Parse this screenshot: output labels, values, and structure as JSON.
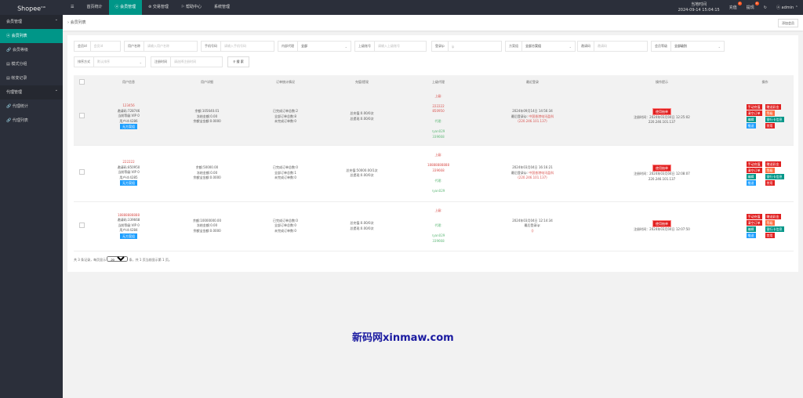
{
  "app": {
    "logo": "Shopee",
    "logo_sup": "V16"
  },
  "topnav": [
    {
      "label": "☰"
    },
    {
      "label": "首页统计"
    },
    {
      "label": "会员管理"
    },
    {
      "label": "交易管理"
    },
    {
      "label": "帮助中心"
    },
    {
      "label": "系统管理"
    }
  ],
  "topright": {
    "time_label": "当地时间",
    "time": "2024-09-14 15:04:15",
    "recharge": "充值",
    "recharge_badge": "1",
    "withdraw": "提现",
    "withdraw_badge": "0",
    "user": "admin"
  },
  "sidebar": [
    {
      "label": "会员管理",
      "group": true
    },
    {
      "label": "会员列表",
      "active": true
    },
    {
      "label": "会员等级"
    },
    {
      "label": "模式分组"
    },
    {
      "label": "帐变记录"
    },
    {
      "label": "代理管理",
      "group": true
    },
    {
      "label": "代理统计"
    },
    {
      "label": "代理列表"
    }
  ],
  "breadcrumb": "会员列表",
  "add_button": "添加会员",
  "filters": {
    "uid": {
      "label": "会员id",
      "placeholder": "会员id"
    },
    "username": {
      "label": "用户名称",
      "placeholder": "请输入用户名称"
    },
    "phone": {
      "label": "手机号码",
      "placeholder": "请输入手机号码"
    },
    "inner_agent": {
      "label": "内部代理",
      "value": "全部"
    },
    "parent": {
      "label": "上级账号",
      "placeholder": "请输入上级账号"
    },
    "ip": {
      "label": "登录ip",
      "placeholder": "ip"
    },
    "scheme": {
      "label": "方案组",
      "value": "全部方案组"
    },
    "invite": {
      "label": "邀请码",
      "placeholder": "邀请码"
    },
    "level": {
      "label": "会员等级",
      "value": "全部级别"
    },
    "sort": {
      "label": "排序方式",
      "value": "默认排序"
    },
    "regtime": {
      "label": "注册时间",
      "placeholder": "请选择注册时间"
    },
    "search": "搜 索"
  },
  "table": {
    "headers": [
      "",
      "用户信息",
      "用户详细",
      "订单统计情况",
      "充值/提现",
      "上级代理",
      "最近登录",
      "操作提示",
      "操作"
    ],
    "rows": [
      {
        "name": "123456",
        "invite": "邀请码:728746",
        "level": "当前等级:VIP 0",
        "uid": "用户id:4286",
        "tag": "无方案组",
        "balance": "余额:105640.01",
        "frozen": "冻结金额:0.00",
        "yeb": "余额宝金额:0.0000",
        "done": "已完成订单总数:2",
        "all": "全部订单总数:8",
        "undone": "未完成订单数:0",
        "recharge": "总充值:0.00/0次",
        "withdraw": "总提现:0.00/0次",
        "up_label": "上级:",
        "up1": "222222",
        "up2": "850950",
        "agent_label": "代理:",
        "agent1": "ryan029",
        "agent2": "339668",
        "login_time": "2024年09月14日 14:56:34",
        "login_ip_label": "最后登录ip:",
        "login_loc": "中国香港电讯盈科",
        "login_ip": "(220.246.101.137)",
        "status": "使用抽单",
        "reg": "注册时间：2024年03月04日 12:25:02",
        "reg_ip": "220.246.101.137"
      },
      {
        "name": "222222",
        "invite": "邀请码:850950",
        "level": "当前等级:VIP 0",
        "uid": "用户id:4285",
        "tag": "无方案组",
        "balance": "余额:50000.00",
        "frozen": "冻结金额:0.00",
        "yeb": "余额宝金额:0.0000",
        "done": "已完成订单总数:0",
        "all": "全部订单总数:1",
        "undone": "未完成订单数:0",
        "recharge": "总充值:50000.00/1次",
        "withdraw": "总提现:0.00/0次",
        "up_label": "上级:",
        "up1": "18888888888",
        "up2": "339668",
        "agent_label": "代理:",
        "agent1": "ryan029",
        "agent2": "",
        "login_time": "2024年03月04日 16:16:21",
        "login_ip_label": "最后登录ip:",
        "login_loc": "中国香港电讯盈科",
        "login_ip": "(220.246.101.137)",
        "status": "使用抽单",
        "reg": "注册时间：2024年03月04日 12:08:07",
        "reg_ip": "220.246.101.137"
      },
      {
        "name": "18888888888",
        "invite": "邀请码:339668",
        "level": "当前等级:VIP 0",
        "uid": "用户id:4284",
        "tag": "无方案组",
        "balance": "余额:10000000.00",
        "frozen": "冻结金额:0.00",
        "yeb": "余额宝金额:0.0000",
        "done": "已完成订单总数:0",
        "all": "全部订单总数:0",
        "undone": "未完成订单数:0",
        "recharge": "总充值:0.00/0次",
        "withdraw": "总提现:0.00/0次",
        "up_label": "上级:",
        "up1": "",
        "up2": "",
        "agent_label": "代理:",
        "agent1": "ryan029",
        "agent2": "339668",
        "login_time": "2024年03月04日 12:14:34",
        "login_ip_label": "最后登录ip:",
        "login_loc": "",
        "login_ip": "()",
        "status": "使用抽单",
        "reg": "注册时间：2024年03月04日 12:07:50",
        "reg_ip": ""
      }
    ],
    "actions": [
      {
        "label": "手动充值",
        "color": "#e02020"
      },
      {
        "label": "赠送彩金",
        "color": "#e02020"
      },
      {
        "label": "清空订单",
        "color": "#e02020"
      },
      {
        "label": "等级",
        "color": "#ff7043"
      },
      {
        "label": "编辑",
        "color": "#009688"
      },
      {
        "label": "银行卡信息",
        "color": "#009688"
      },
      {
        "label": "推送",
        "color": "#1e9fff"
      },
      {
        "label": "禁用",
        "color": "#e02020"
      }
    ]
  },
  "pagination": {
    "prefix": "共 3 条记录，每页显示",
    "per_page": "20",
    "suffix": "条，共 1 页当前显示第 1 页。"
  },
  "watermark": "新码网xinmaw.com"
}
